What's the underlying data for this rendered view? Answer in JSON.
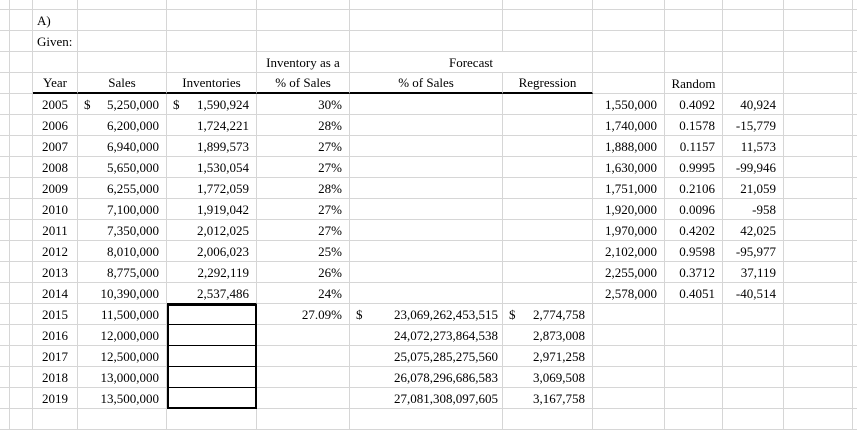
{
  "colors": {
    "gridline": "#d6d6d6",
    "cell_border_dark": "#000000",
    "error_flag_green": "#128a12"
  },
  "labels": {
    "section": "A)",
    "given": "Given:"
  },
  "headers": {
    "inventory_as_a": "Inventory as a",
    "forecast": "Forecast",
    "year": "Year",
    "sales": "Sales",
    "inventories": "Inventories",
    "inventory_pct_of_sales": "% of Sales",
    "forecast_pct_of_sales": "% of Sales",
    "regression": "Regression",
    "random": "Random"
  },
  "historical_rows": [
    {
      "year": "2005",
      "sales_dollar": "$",
      "sales": "5,250,000",
      "inventories_dollar": "$",
      "inventories": "1,590,924",
      "inventory_pct": "30%",
      "level": "1,550,000",
      "random": "0.4092",
      "deviation": "40,924",
      "flag": false
    },
    {
      "year": "2006",
      "sales": "6,200,000",
      "inventories": "1,724,221",
      "inventory_pct": "28%",
      "level": "1,740,000",
      "random": "0.1578",
      "deviation": "-15,779",
      "flag": true
    },
    {
      "year": "2007",
      "sales": "6,940,000",
      "inventories": "1,899,573",
      "inventory_pct": "27%",
      "level": "1,888,000",
      "random": "0.1157",
      "deviation": "11,573",
      "flag": false
    },
    {
      "year": "2008",
      "sales": "5,650,000",
      "inventories": "1,530,054",
      "inventory_pct": "27%",
      "level": "1,630,000",
      "random": "0.9995",
      "deviation": "-99,946",
      "flag": true
    },
    {
      "year": "2009",
      "sales": "6,255,000",
      "inventories": "1,772,059",
      "inventory_pct": "28%",
      "level": "1,751,000",
      "random": "0.2106",
      "deviation": "21,059",
      "flag": false
    },
    {
      "year": "2010",
      "sales": "7,100,000",
      "inventories": "1,919,042",
      "inventory_pct": "27%",
      "level": "1,920,000",
      "random": "0.0096",
      "deviation": "-958",
      "flag": true
    },
    {
      "year": "2011",
      "sales": "7,350,000",
      "inventories": "2,012,025",
      "inventory_pct": "27%",
      "level": "1,970,000",
      "random": "0.4202",
      "deviation": "42,025",
      "flag": false
    },
    {
      "year": "2012",
      "sales": "8,010,000",
      "inventories": "2,006,023",
      "inventory_pct": "25%",
      "level": "2,102,000",
      "random": "0.9598",
      "deviation": "-95,977",
      "flag": true
    },
    {
      "year": "2013",
      "sales": "8,775,000",
      "inventories": "2,292,119",
      "inventory_pct": "26%",
      "level": "2,255,000",
      "random": "0.3712",
      "deviation": "37,119",
      "flag": false
    },
    {
      "year": "2014",
      "sales": "10,390,000",
      "inventories": "2,537,486",
      "inventory_pct": "24%",
      "level": "2,578,000",
      "random": "0.4051",
      "deviation": "-40,514",
      "flag": false
    }
  ],
  "forecast_rows": [
    {
      "year": "2015",
      "sales": "11,500,000",
      "inventory_pct": "27.09%",
      "pct_forecast_dollar": "$",
      "pct_forecast": "23,069,262,453,515",
      "regression_dollar": "$",
      "regression_forecast": "2,774,758"
    },
    {
      "year": "2016",
      "sales": "12,000,000",
      "pct_forecast": "24,072,273,864,538",
      "regression_forecast": "2,873,008"
    },
    {
      "year": "2017",
      "sales": "12,500,000",
      "pct_forecast": "25,075,285,275,560",
      "regression_forecast": "2,971,258"
    },
    {
      "year": "2018",
      "sales": "13,000,000",
      "pct_forecast": "26,078,296,686,583",
      "regression_forecast": "3,069,508"
    },
    {
      "year": "2019",
      "sales": "13,500,000",
      "pct_forecast": "27,081,308,097,605",
      "regression_forecast": "3,167,758"
    }
  ]
}
